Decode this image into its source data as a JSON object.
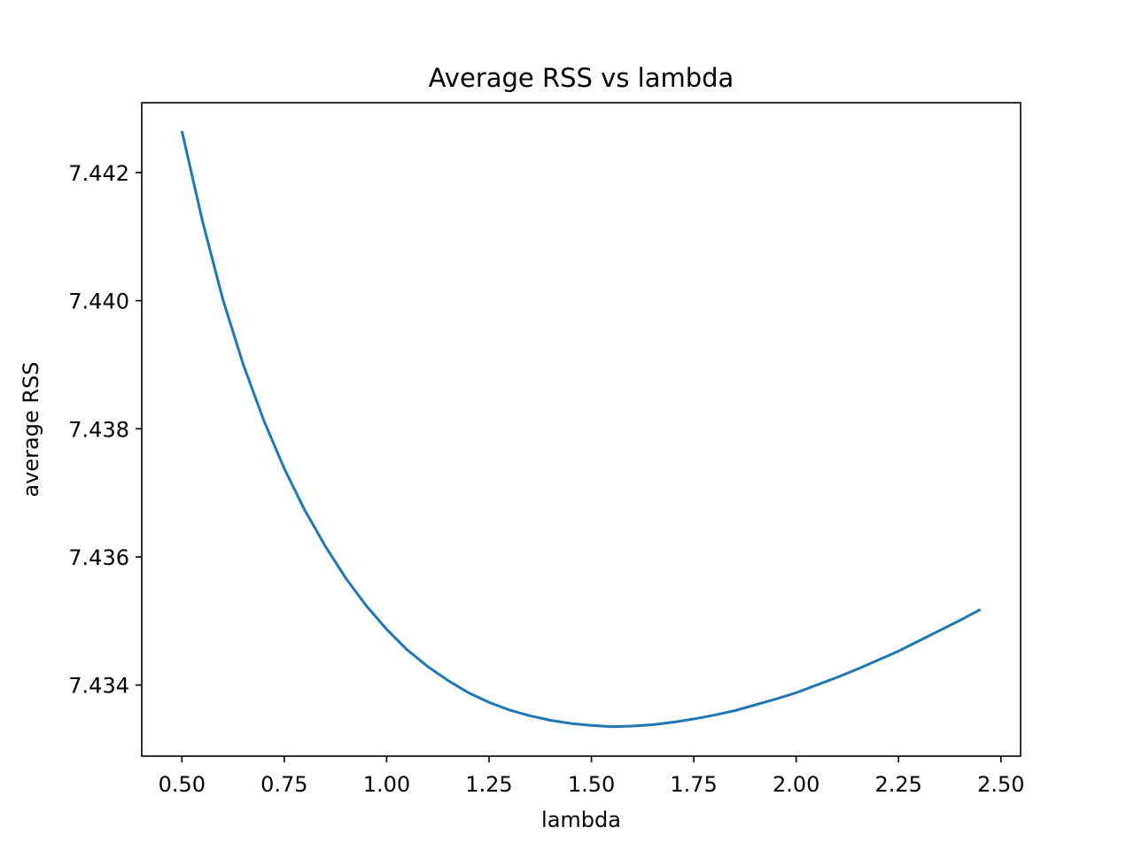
{
  "chart_data": {
    "type": "line",
    "title": "Average RSS vs lambda",
    "xlabel": "lambda",
    "ylabel": "average RSS",
    "xlim": [
      0.402,
      2.548
    ],
    "ylim": [
      7.43289,
      7.44309
    ],
    "grid": false,
    "x_ticks": [
      0.5,
      0.75,
      1.0,
      1.25,
      1.5,
      1.75,
      2.0,
      2.25,
      2.5
    ],
    "x_tick_labels": [
      "0.50",
      "0.75",
      "1.00",
      "1.25",
      "1.50",
      "1.75",
      "2.00",
      "2.25",
      "2.50"
    ],
    "y_ticks": [
      7.434,
      7.436,
      7.438,
      7.44,
      7.442
    ],
    "y_tick_labels": [
      "7.434",
      "7.436",
      "7.438",
      "7.440",
      "7.442"
    ],
    "series": [
      {
        "color": "#1f77b4",
        "x": [
          0.5,
          0.55,
          0.6,
          0.65,
          0.7,
          0.75,
          0.8,
          0.85,
          0.9,
          0.95,
          1.0,
          1.05,
          1.1,
          1.15,
          1.2,
          1.25,
          1.3,
          1.35,
          1.4,
          1.45,
          1.5,
          1.55,
          1.6,
          1.65,
          1.7,
          1.75,
          1.8,
          1.85,
          1.9,
          1.95,
          2.0,
          2.05,
          2.1,
          2.15,
          2.2,
          2.25,
          2.3,
          2.35,
          2.4,
          2.45
        ],
        "y": [
          7.44265,
          7.44125,
          7.44002,
          7.439,
          7.43813,
          7.43738,
          7.43673,
          7.43617,
          7.43567,
          7.43524,
          7.43487,
          7.43455,
          7.43429,
          7.43407,
          7.43388,
          7.43373,
          7.43361,
          7.43352,
          7.43345,
          7.4334,
          7.43337,
          7.43335,
          7.43336,
          7.43338,
          7.43342,
          7.43347,
          7.43353,
          7.4336,
          7.43369,
          7.43378,
          7.43388,
          7.434,
          7.43412,
          7.43425,
          7.43439,
          7.43453,
          7.43469,
          7.43485,
          7.43501,
          7.43518
        ]
      }
    ]
  }
}
